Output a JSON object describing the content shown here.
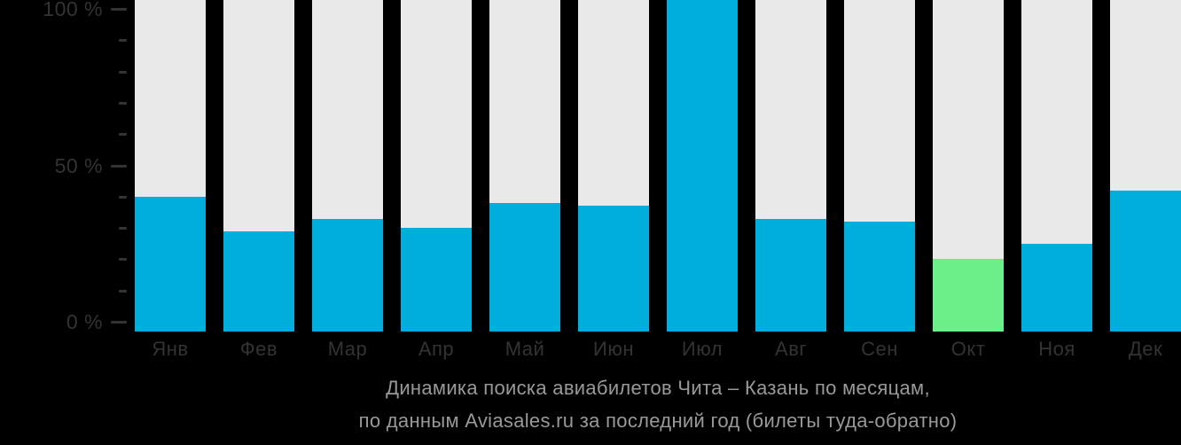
{
  "chart_data": {
    "type": "bar",
    "categories": [
      "Янв",
      "Фев",
      "Мар",
      "Апр",
      "Май",
      "Июн",
      "Июл",
      "Авг",
      "Сен",
      "Окт",
      "Ноя",
      "Дек"
    ],
    "values": [
      40,
      29,
      33,
      30,
      38,
      37,
      100,
      33,
      32,
      20,
      25,
      42
    ],
    "unit": "%",
    "title": "Динамика поиска авиабилетов Чита – Казань по месяцам, по данным Aviasales.ru за последний год (билеты туда-обратно)",
    "xlabel": "",
    "ylabel": "",
    "ylim": [
      0,
      100
    ],
    "grid": false,
    "legend": false,
    "max_month": "Июл",
    "highlight_index": 9,
    "highlight_month": "Окт",
    "y_ticks_major": [
      {
        "label": "100 %",
        "value": 100
      },
      {
        "label": "50 %",
        "value": 50
      },
      {
        "label": "0 %",
        "value": 0
      }
    ],
    "y_ticks_minor_values": [
      90,
      80,
      70,
      60,
      40,
      30,
      20,
      10
    ],
    "colors": {
      "bar": "#00AEDC",
      "bar_highlight": "#6CEE88",
      "bar_background": "#E9E9E9",
      "axis_text": "#333333",
      "tick": "#333333",
      "title_text": "#999999",
      "page_background": "#000000"
    }
  },
  "title": {
    "line1": "Динамика поиска авиабилетов Чита – Казань по месяцам,",
    "line2": "по данным Aviasales.ru за последний год (билеты туда-обратно)"
  }
}
